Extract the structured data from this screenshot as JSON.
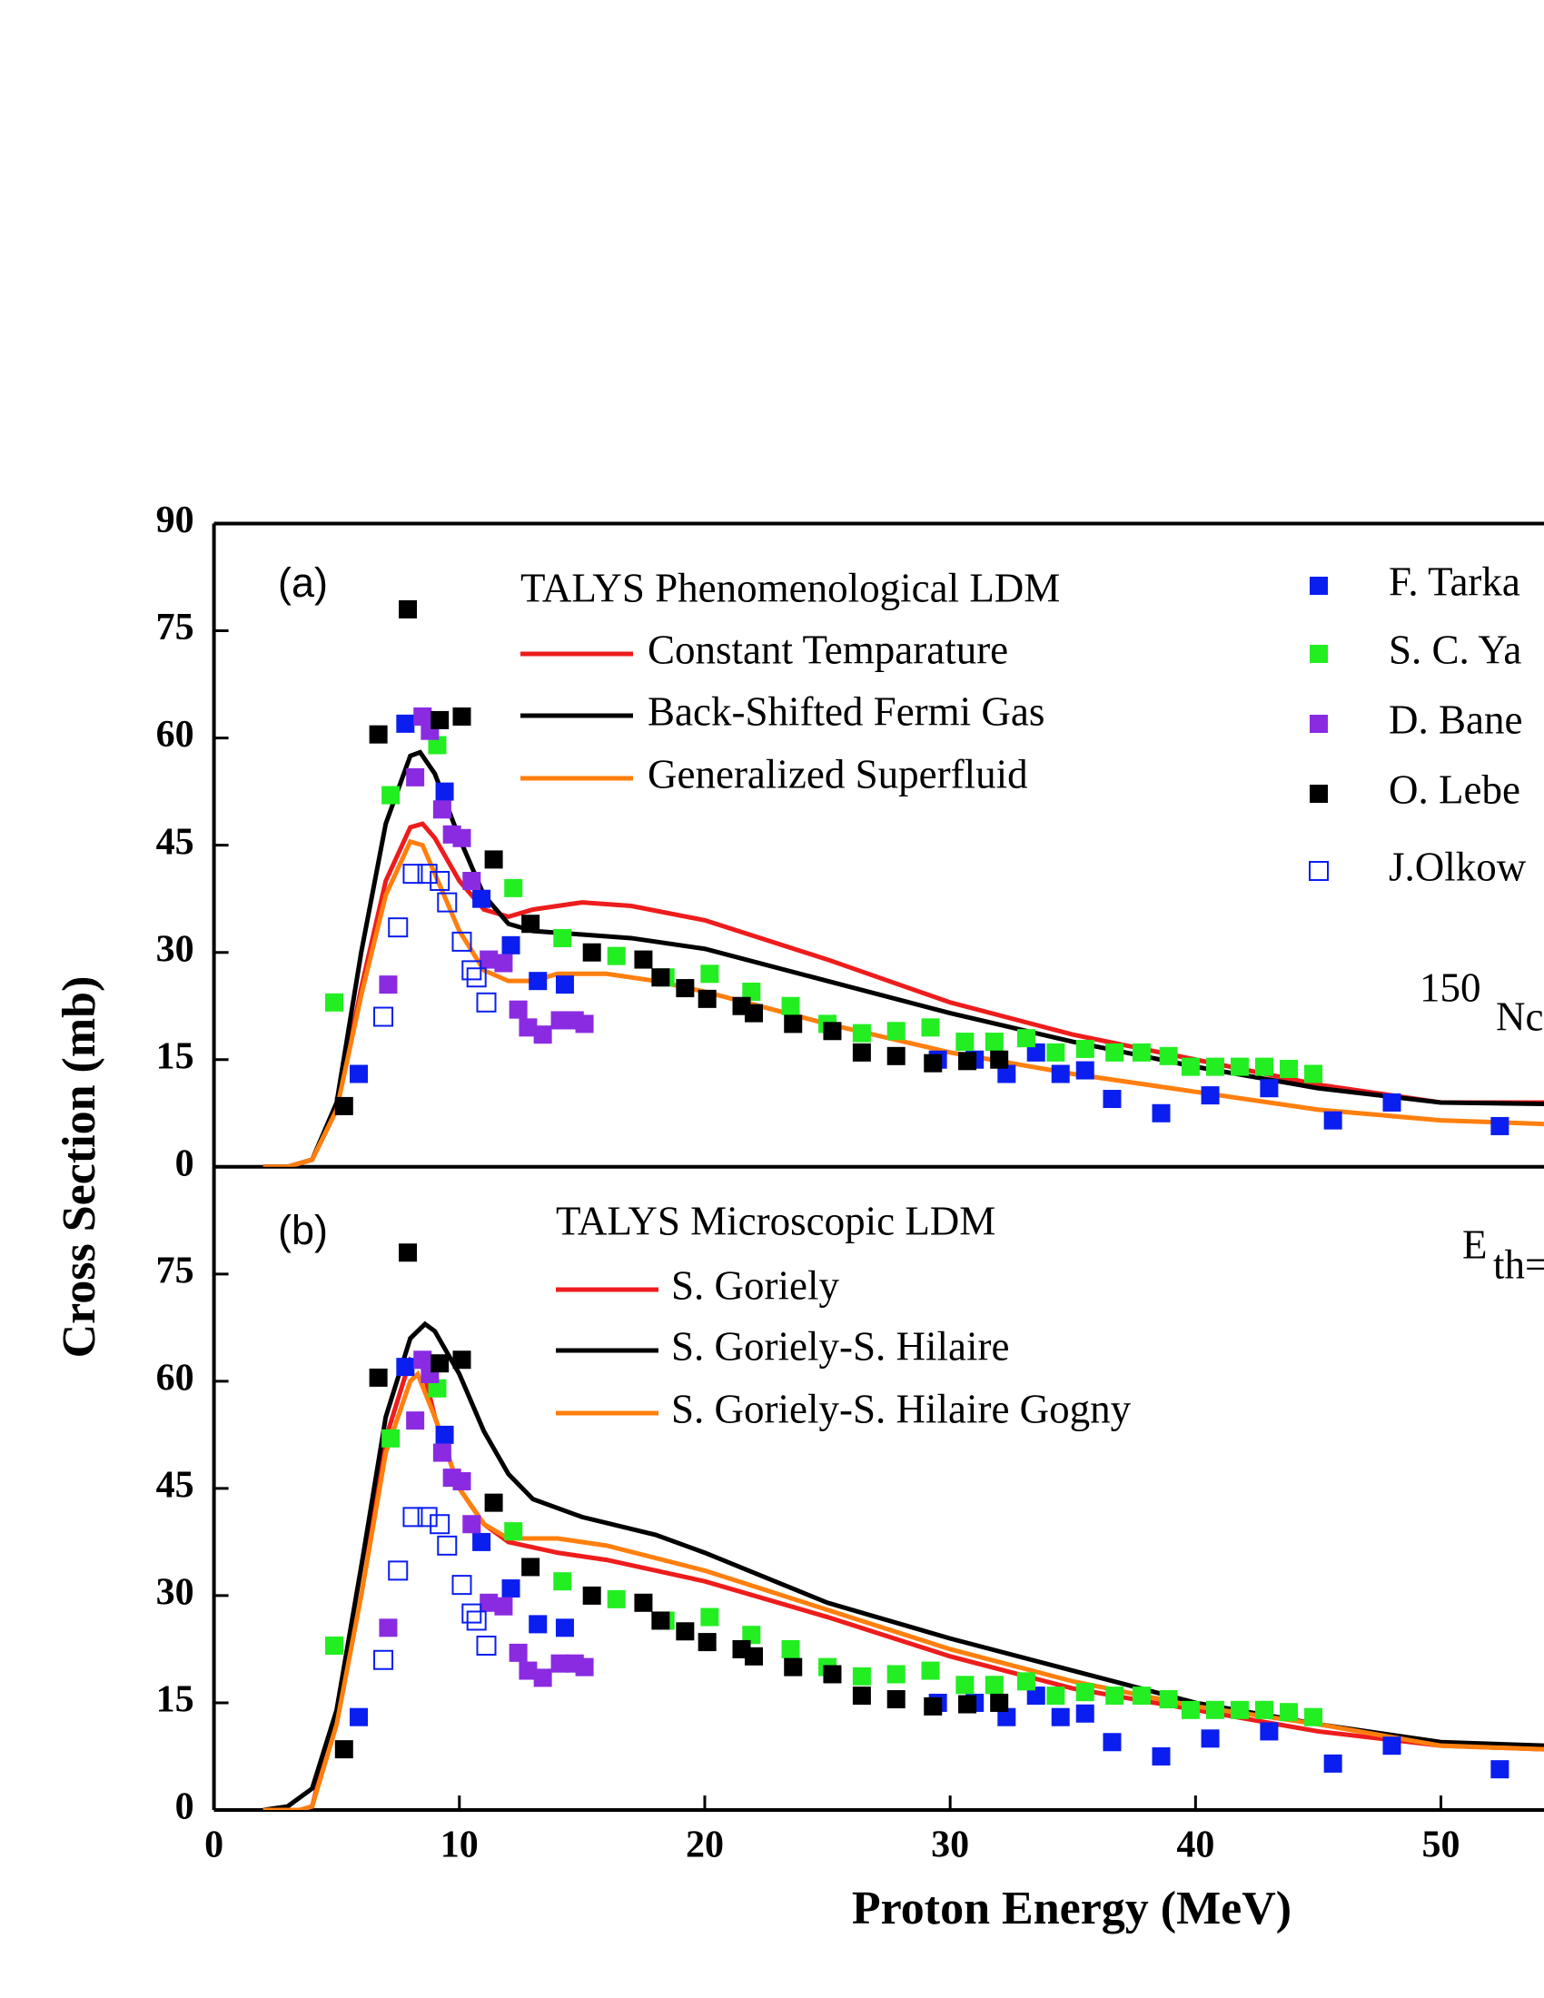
{
  "chart_data": [
    {
      "type": "line",
      "panel_label": "(a)",
      "legend_title": "TALYS Phenomenological LDM",
      "ylabel": "Cross Section (mb)",
      "xlim": [
        0,
        54.2
      ],
      "ylim": [
        0,
        90
      ],
      "yticks": [
        0,
        15,
        30,
        45,
        60,
        75,
        90
      ],
      "nuclide": {
        "mass": "150",
        "symbol": "Nc"
      },
      "series": [
        {
          "name": "Constant Temparature",
          "color": "#ee1c1c",
          "style": "line",
          "x": [
            2,
            3,
            4,
            5,
            6,
            7,
            8,
            8.5,
            9,
            10,
            11,
            12,
            13,
            15,
            17,
            20,
            25,
            30,
            35,
            40,
            45,
            50,
            54.2
          ],
          "values": [
            0,
            0,
            1,
            8,
            25,
            40,
            47.5,
            48,
            46,
            40,
            36,
            35,
            36,
            37,
            36.5,
            34.5,
            29,
            23,
            18.5,
            15,
            11.5,
            9,
            9
          ]
        },
        {
          "name": "Back-Shifted Fermi Gas",
          "color": "#000000",
          "style": "line",
          "x": [
            2,
            3,
            4,
            5,
            6,
            7,
            8,
            8.4,
            9,
            10,
            11,
            12,
            13,
            15,
            17,
            20,
            25,
            30,
            35,
            40,
            45,
            50,
            54.2
          ],
          "values": [
            0,
            0,
            1,
            9,
            30,
            48,
            57.5,
            58,
            55,
            46,
            38,
            34,
            33,
            32.5,
            32,
            30.5,
            26,
            21.5,
            17.5,
            14,
            11,
            9,
            8.8
          ]
        },
        {
          "name": "Generalized Superfluid",
          "color": "#ff7f0e",
          "style": "line",
          "x": [
            2,
            3,
            4,
            5,
            6,
            7,
            8,
            8.5,
            9,
            10,
            11,
            12,
            13,
            14,
            16,
            18,
            20,
            25,
            30,
            35,
            40,
            45,
            50,
            54.2
          ],
          "values": [
            0,
            0,
            1,
            8,
            24,
            38,
            45.5,
            45,
            41,
            33,
            27.5,
            26,
            26,
            27,
            27,
            26,
            24.5,
            20,
            16,
            13,
            10.5,
            8,
            6.5,
            6
          ]
        },
        {
          "name": "F. Tarka",
          "color": "#0a1ef0",
          "style": "square",
          "x": [
            5.9,
            7.8,
            9.4,
            10.9,
            12.1,
            13.2,
            14.3,
            29.5,
            31,
            32.3,
            33.5,
            34.5,
            35.5,
            36.6,
            38.6,
            40.6,
            43,
            45.6,
            48,
            52.4
          ],
          "values": [
            13,
            62,
            52.5,
            37.5,
            31,
            26,
            25.5,
            15,
            15,
            13,
            16,
            13,
            13.5,
            9.5,
            7.5,
            10,
            11,
            6.5,
            9,
            5.7
          ]
        },
        {
          "name": "S. C. Ya",
          "color": "#22ee22",
          "style": "square",
          "x": [
            4.9,
            7.2,
            9.1,
            12.2,
            14.2,
            16.4,
            18.4,
            20.2,
            21.9,
            23.5,
            25,
            26.4,
            27.8,
            29.2,
            30.6,
            31.8,
            33.1,
            34.3,
            35.5,
            36.7,
            37.8,
            38.9,
            39.8,
            40.8,
            41.8,
            42.8,
            43.8,
            44.8
          ],
          "values": [
            23,
            52,
            59,
            39,
            32,
            29.5,
            26.5,
            27,
            24.5,
            22.5,
            20,
            18.7,
            19,
            19.5,
            17.5,
            17.5,
            18,
            16,
            16.5,
            16,
            16,
            15.5,
            14,
            14,
            14,
            14,
            13.7,
            13
          ]
        },
        {
          "name": "D. Bane",
          "color": "#8a2be2",
          "style": "square",
          "x": [
            7.1,
            8.2,
            8.5,
            8.8,
            9.3,
            9.7,
            10.1,
            10.5,
            11.2,
            11.8,
            12.4,
            12.8,
            13.4,
            14.1,
            14.7,
            15.1
          ],
          "values": [
            25.5,
            54.5,
            63,
            61,
            50,
            46.5,
            46,
            40,
            29,
            28.5,
            22,
            19.5,
            18.5,
            20.5,
            20.5,
            20
          ]
        },
        {
          "name": "O. Lebe",
          "color": "#000000",
          "style": "square",
          "x": [
            5.3,
            6.7,
            7.9,
            9.2,
            10.1,
            11.4,
            12.9,
            15.4,
            17.5,
            18.2,
            19.2,
            20.1,
            21.5,
            22,
            23.6,
            25.2,
            26.4,
            27.8,
            29.3,
            30.7,
            32
          ],
          "values": [
            8.5,
            60.5,
            78,
            62.5,
            63,
            43,
            34,
            30,
            29,
            26.5,
            25,
            23.5,
            22.5,
            21.5,
            20,
            19,
            16,
            15.5,
            14.5,
            14.8,
            15
          ]
        },
        {
          "name": "J.Olkow",
          "color": "#0a1ef0",
          "style": "open-square",
          "x": [
            6.9,
            7.5,
            8.1,
            8.7,
            9.2,
            9.5,
            10.1,
            10.5,
            10.7,
            11.1
          ],
          "values": [
            21,
            33.5,
            41,
            41,
            40,
            37,
            31.5,
            27.5,
            26.5,
            23
          ]
        }
      ]
    },
    {
      "type": "line",
      "panel_label": "(b)",
      "legend_title": "TALYS Microscopic LDM",
      "xlabel": "Proton Energy (MeV)",
      "xlim": [
        0,
        54.2
      ],
      "xticks": [
        0,
        10,
        20,
        30,
        40,
        50
      ],
      "ylim": [
        0,
        90
      ],
      "yticks": [
        0,
        15,
        30,
        45,
        60,
        75
      ],
      "threshold": {
        "symbol": "E",
        "sub": "th="
      },
      "series": [
        {
          "name": "S. Goriely",
          "color": "#ee1c1c",
          "style": "line",
          "x": [
            2,
            3.5,
            4,
            5,
            6,
            7,
            8,
            8.5,
            9,
            10,
            11,
            12,
            14,
            16,
            20,
            25,
            30,
            35,
            40,
            45,
            50,
            54.2
          ],
          "values": [
            0,
            0,
            0.5,
            14,
            34,
            52,
            63,
            62,
            55,
            45,
            40,
            37.5,
            36,
            35,
            32,
            27,
            21.5,
            17,
            14,
            11,
            9,
            8.5
          ]
        },
        {
          "name": "S. Goriely-S. Hilaire",
          "color": "#000000",
          "style": "line",
          "x": [
            2,
            3,
            4,
            5,
            6,
            7,
            8,
            8.6,
            9,
            10,
            11,
            12,
            13,
            15,
            18,
            20,
            25,
            30,
            35,
            40,
            45,
            50,
            54.2
          ],
          "values": [
            0,
            0.5,
            3,
            14,
            34,
            55,
            66,
            68,
            67,
            61,
            53,
            47,
            43.5,
            41,
            38.5,
            36,
            29,
            24,
            19.5,
            15,
            12,
            9.5,
            9
          ]
        },
        {
          "name": "S. Goriely-S. Hilaire Gogny",
          "color": "#ff7f0e",
          "style": "line",
          "x": [
            2,
            3.5,
            4,
            5,
            6,
            7,
            8,
            8.3,
            9,
            10,
            11,
            12,
            14,
            16,
            20,
            25,
            30,
            35,
            40,
            45,
            50,
            54.2
          ],
          "values": [
            0,
            0,
            0.5,
            12,
            30,
            50,
            60,
            61,
            55,
            45,
            40,
            38,
            38,
            37,
            33.5,
            28,
            22.5,
            18,
            14.5,
            12,
            9,
            8.5
          ]
        },
        {
          "color": "#0a1ef0",
          "style": "square",
          "x": [
            5.9,
            7.8,
            9.4,
            10.9,
            12.1,
            13.2,
            14.3,
            29.5,
            31,
            32.3,
            33.5,
            34.5,
            35.5,
            36.6,
            38.6,
            40.6,
            43,
            45.6,
            48,
            52.4
          ],
          "values": [
            13,
            62,
            52.5,
            37.5,
            31,
            26,
            25.5,
            15,
            15,
            13,
            16,
            13,
            13.5,
            9.5,
            7.5,
            10,
            11,
            6.5,
            9,
            5.7
          ]
        },
        {
          "color": "#22ee22",
          "style": "square",
          "x": [
            4.9,
            7.2,
            9.1,
            12.2,
            14.2,
            16.4,
            18.4,
            20.2,
            21.9,
            23.5,
            25,
            26.4,
            27.8,
            29.2,
            30.6,
            31.8,
            33.1,
            34.3,
            35.5,
            36.7,
            37.8,
            38.9,
            39.8,
            40.8,
            41.8,
            42.8,
            43.8,
            44.8
          ],
          "values": [
            23,
            52,
            59,
            39,
            32,
            29.5,
            26.5,
            27,
            24.5,
            22.5,
            20,
            18.7,
            19,
            19.5,
            17.5,
            17.5,
            18,
            16,
            16.5,
            16,
            16,
            15.5,
            14,
            14,
            14,
            14,
            13.7,
            13
          ]
        },
        {
          "color": "#8a2be2",
          "style": "square",
          "x": [
            7.1,
            8.2,
            8.5,
            8.8,
            9.3,
            9.7,
            10.1,
            10.5,
            11.2,
            11.8,
            12.4,
            12.8,
            13.4,
            14.1,
            14.7,
            15.1
          ],
          "values": [
            25.5,
            54.5,
            63,
            61,
            50,
            46.5,
            46,
            40,
            29,
            28.5,
            22,
            19.5,
            18.5,
            20.5,
            20.5,
            20
          ]
        },
        {
          "color": "#000000",
          "style": "square",
          "x": [
            5.3,
            6.7,
            7.9,
            9.2,
            10.1,
            11.4,
            12.9,
            15.4,
            17.5,
            18.2,
            19.2,
            20.1,
            21.5,
            22,
            23.6,
            25.2,
            26.4,
            27.8,
            29.3,
            30.7,
            32
          ],
          "values": [
            8.5,
            60.5,
            78,
            62.5,
            63,
            43,
            34,
            30,
            29,
            26.5,
            25,
            23.5,
            22.5,
            21.5,
            20,
            19,
            16,
            15.5,
            14.5,
            14.8,
            15
          ]
        },
        {
          "color": "#0a1ef0",
          "style": "open-square",
          "x": [
            6.9,
            7.5,
            8.1,
            8.7,
            9.2,
            9.5,
            10.1,
            10.5,
            10.7,
            11.1
          ],
          "values": [
            21,
            33.5,
            41,
            41,
            40,
            37,
            31.5,
            27.5,
            26.5,
            23
          ]
        }
      ]
    }
  ]
}
